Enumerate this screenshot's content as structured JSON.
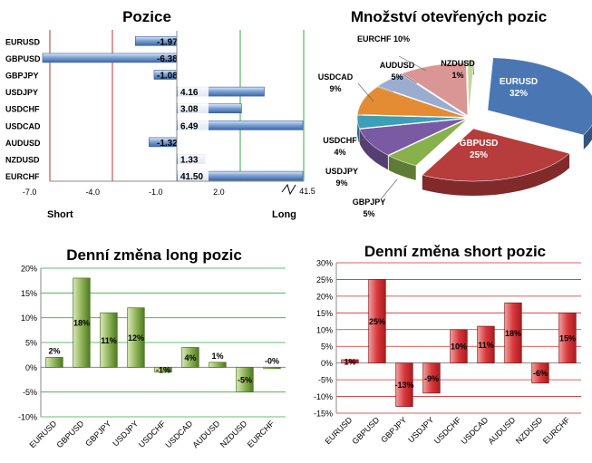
{
  "charts": {
    "positions": {
      "title": "Pozice",
      "label_short": "Short",
      "label_long": "Long"
    },
    "open_positions": {
      "title": "Množství otevřených pozic"
    },
    "daily_long": {
      "title": "Denní změna long pozic"
    },
    "daily_short": {
      "title": "Denní změna short pozic"
    }
  },
  "colors": {
    "neg_bar": "#5b80b8",
    "pos_bar": "#4f7ec1",
    "long_green": "#5d8a22",
    "short_red": "#c0282c",
    "grid_green": "#3aa840",
    "grid_red": "#d02c2c"
  },
  "chart_data": [
    {
      "type": "bar",
      "orientation": "horizontal",
      "title": "Pozice",
      "categories": [
        "EURUSD",
        "GBPUSD",
        "GBPJPY",
        "USDJPY",
        "USDCHF",
        "USDCAD",
        "AUDUSD",
        "NZDUSD",
        "EURCHF"
      ],
      "values": [
        -1.97,
        -6.38,
        -1.08,
        4.16,
        3.08,
        6.49,
        -1.32,
        1.33,
        41.5
      ],
      "value_labels": [
        "-1.97",
        "-6.38",
        "-1.08",
        "4.16",
        "3.08",
        "6.49",
        "-1.32",
        "1.33",
        "41.50"
      ],
      "x_ticks": [
        "-7.0",
        "-4.0",
        "-1.0",
        "2.0",
        "41.5"
      ],
      "xlim": [
        -7.0,
        6.5
      ],
      "axis_break": true
    },
    {
      "type": "pie",
      "title": "Množství otevřených pozic",
      "slices": [
        {
          "name": "EURUSD",
          "value": 32,
          "label": "32%",
          "color": "#4a77b4"
        },
        {
          "name": "GBPUSD",
          "value": 25,
          "label": "25%",
          "color": "#b73c3c"
        },
        {
          "name": "GBPJPY",
          "value": 5,
          "label": "5%",
          "color": "#88b04b"
        },
        {
          "name": "USDJPY",
          "value": 9,
          "label": "9%",
          "color": "#7a5aa3"
        },
        {
          "name": "USDCHF",
          "value": 4,
          "label": "4%",
          "color": "#3ba0b7"
        },
        {
          "name": "USDCAD",
          "value": 9,
          "label": "9%",
          "color": "#e38c34"
        },
        {
          "name": "AUDUSD",
          "value": 5,
          "label": "5%",
          "color": "#9aacd0"
        },
        {
          "name": "EURCHF",
          "value": 10,
          "label": "10%",
          "color": "#d99694"
        },
        {
          "name": "NZDUSD",
          "value": 1,
          "label": "1%",
          "color": "#c5d6a0"
        }
      ]
    },
    {
      "type": "bar",
      "title": "Denní změna long pozic",
      "categories": [
        "EURUSD",
        "GBPUSD",
        "GBPJPY",
        "USDJPY",
        "USDCHF",
        "USDCAD",
        "AUDUSD",
        "NZDUSD",
        "EURCHF"
      ],
      "values": [
        2,
        18,
        11,
        12,
        -1,
        4,
        1,
        -5,
        0
      ],
      "value_labels": [
        "2%",
        "18%",
        "11%",
        "12%",
        "-1%",
        "4%",
        "1%",
        "-5%",
        "-0%"
      ],
      "y_ticks": [
        "20%",
        "15%",
        "10%",
        "5%",
        "0%",
        "-5%",
        "-10%"
      ],
      "ylim": [
        -10,
        20
      ]
    },
    {
      "type": "bar",
      "title": "Denní změna short pozic",
      "categories": [
        "EURUSD",
        "GBPUSD",
        "GBPJPY",
        "USDJPY",
        "USDCHF",
        "USDCAD",
        "AUDUSD",
        "NZDUSD",
        "EURCHF"
      ],
      "values": [
        1,
        25,
        -13,
        -9,
        10,
        11,
        18,
        -6,
        15
      ],
      "value_labels": [
        "1%",
        "25%",
        "-13%",
        "-9%",
        "10%",
        "11%",
        "18%",
        "-6%",
        "15%"
      ],
      "y_ticks": [
        "30%",
        "25%",
        "20%",
        "15%",
        "10%",
        "5%",
        "0%",
        "-5%",
        "-10%",
        "-15%"
      ],
      "ylim": [
        -15,
        30
      ]
    }
  ]
}
